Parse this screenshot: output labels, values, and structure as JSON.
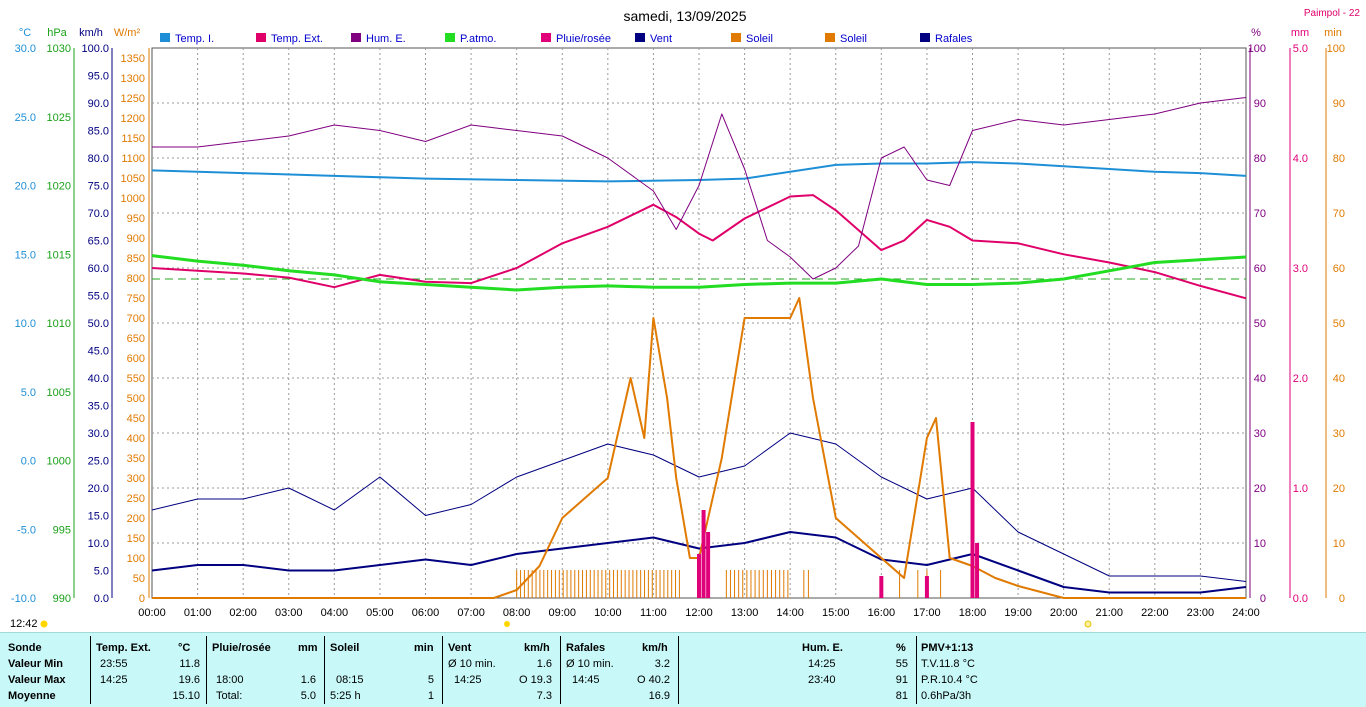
{
  "header": {
    "title": "samedi, 13/09/2025",
    "station": "Paimpol - 22"
  },
  "axes": {
    "temp": {
      "unit": "°C",
      "color": "#1e8fd6",
      "ticks": [
        "30.0",
        "25.0",
        "20.0",
        "15.0",
        "10.0",
        "5.0",
        "0.0",
        "-5.0",
        "-10.0"
      ]
    },
    "press": {
      "unit": "hPa",
      "color": "#1aa11a",
      "ticks": [
        "1030",
        "1025",
        "1020",
        "1015",
        "1010",
        "1005",
        "1000",
        "995",
        "990"
      ]
    },
    "wind": {
      "unit": "km/h",
      "color": "#000080",
      "ticks": [
        "100.0",
        "95.0",
        "90.0",
        "85.0",
        "80.0",
        "75.0",
        "70.0",
        "65.0",
        "60.0",
        "55.0",
        "50.0",
        "45.0",
        "40.0",
        "35.0",
        "30.0",
        "25.0",
        "20.0",
        "15.0",
        "10.0",
        "5.0",
        "0.0"
      ]
    },
    "solar": {
      "unit": "W/m²",
      "color": "#e07a00",
      "ticks": [
        "1350",
        "1300",
        "1250",
        "1200",
        "1150",
        "1100",
        "1050",
        "1000",
        "950",
        "900",
        "850",
        "800",
        "750",
        "700",
        "650",
        "600",
        "550",
        "500",
        "450",
        "400",
        "350",
        "300",
        "250",
        "200",
        "150",
        "100",
        "50",
        "0"
      ]
    },
    "hum": {
      "unit": "%",
      "color": "#800080",
      "ticks": [
        "100",
        "90",
        "80",
        "70",
        "60",
        "50",
        "40",
        "30",
        "20",
        "10",
        "0"
      ]
    },
    "rain": {
      "unit": "mm",
      "color": "#e0007a",
      "ticks": [
        "5.0",
        "4.0",
        "3.0",
        "2.0",
        "1.0",
        "0.0"
      ]
    },
    "sunmin": {
      "unit": "min",
      "color": "#e07a00",
      "ticks": [
        "100",
        "90",
        "80",
        "70",
        "60",
        "50",
        "40",
        "30",
        "20",
        "10",
        "0"
      ]
    }
  },
  "legend": [
    {
      "label": "Temp. I.",
      "color": "#1e8fd6"
    },
    {
      "label": "Temp. Ext.",
      "color": "#e0006a"
    },
    {
      "label": "Hum. E.",
      "color": "#800080"
    },
    {
      "label": "P.atmo.",
      "color": "#22dd22"
    },
    {
      "label": "Pluie/rosée",
      "color": "#e0007a"
    },
    {
      "label": "Vent",
      "color": "#000080"
    },
    {
      "label": "Soleil",
      "color": "#e07a00"
    },
    {
      "label": "Soleil",
      "color": "#e07a00"
    },
    {
      "label": "Rafales",
      "color": "#000080"
    }
  ],
  "chart_data": {
    "type": "line",
    "x_ticks": [
      "00:00",
      "01:00",
      "02:00",
      "03:00",
      "04:00",
      "05:00",
      "06:00",
      "07:00",
      "08:00",
      "09:00",
      "10:00",
      "11:00",
      "12:00",
      "13:00",
      "14:00",
      "15:00",
      "16:00",
      "17:00",
      "18:00",
      "19:00",
      "20:00",
      "21:00",
      "22:00",
      "23:00",
      "24:00"
    ],
    "grid": true,
    "series": [
      {
        "name": "Temp. I.",
        "axis": "temp",
        "x": [
          0,
          2,
          4,
          6,
          8,
          10,
          12,
          13,
          14,
          15,
          16,
          17,
          18,
          19,
          20,
          21,
          22,
          23,
          24
        ],
        "values": [
          21.1,
          20.9,
          20.7,
          20.5,
          20.4,
          20.3,
          20.4,
          20.5,
          21.0,
          21.5,
          21.6,
          21.6,
          21.7,
          21.6,
          21.4,
          21.2,
          21.0,
          20.9,
          20.7
        ]
      },
      {
        "name": "Temp. Ext.",
        "axis": "temp",
        "x": [
          0,
          1,
          2,
          3,
          4,
          5,
          6,
          7,
          8,
          9,
          10,
          11,
          11.5,
          12,
          12.3,
          13,
          14,
          14.5,
          15,
          16,
          16.5,
          17,
          17.5,
          18,
          19,
          20,
          21,
          22,
          23,
          24
        ],
        "values": [
          14.0,
          13.8,
          13.6,
          13.3,
          12.6,
          13.5,
          13.0,
          12.9,
          14.0,
          15.8,
          17.0,
          18.6,
          17.7,
          16.5,
          16.0,
          17.6,
          19.2,
          19.3,
          18.2,
          15.3,
          16.0,
          17.5,
          17.0,
          16.0,
          15.8,
          15.0,
          14.4,
          13.7,
          12.7,
          11.8
        ]
      },
      {
        "name": "Hum. E.",
        "axis": "hum",
        "x": [
          0,
          1,
          2,
          3,
          4,
          5,
          6,
          7,
          8,
          9,
          10,
          11,
          11.5,
          12,
          12.5,
          13,
          13.5,
          14,
          14.5,
          15,
          15.5,
          16,
          16.5,
          17,
          17.5,
          18,
          19,
          20,
          21,
          22,
          23,
          24
        ],
        "values": [
          82,
          82,
          83,
          84,
          86,
          85,
          83,
          86,
          85,
          84,
          80,
          74,
          67,
          75,
          88,
          78,
          65,
          62,
          58,
          60,
          64,
          80,
          82,
          76,
          75,
          85,
          87,
          86,
          87,
          88,
          90,
          91
        ]
      },
      {
        "name": "P.atmo.",
        "axis": "press",
        "x": [
          0,
          1,
          2,
          3,
          4,
          5,
          6,
          7,
          8,
          9,
          10,
          11,
          12,
          13,
          14,
          15,
          16,
          17,
          18,
          19,
          20,
          21,
          22,
          23,
          24
        ],
        "values": [
          1014.9,
          1014.5,
          1014.2,
          1013.8,
          1013.5,
          1013.0,
          1012.8,
          1012.6,
          1012.4,
          1012.6,
          1012.7,
          1012.6,
          1012.6,
          1012.8,
          1012.9,
          1012.9,
          1013.2,
          1012.8,
          1012.8,
          1012.9,
          1013.2,
          1013.8,
          1014.4,
          1014.6,
          1014.8
        ]
      },
      {
        "name": "Vent",
        "axis": "wind",
        "x": [
          0,
          1,
          2,
          3,
          4,
          5,
          6,
          7,
          8,
          9,
          10,
          11,
          12,
          13,
          14,
          15,
          16,
          17,
          18,
          19,
          20,
          21,
          22,
          23,
          24
        ],
        "values": [
          5,
          6,
          6,
          5,
          5,
          6,
          7,
          6,
          8,
          9,
          10,
          11,
          9,
          10,
          12,
          11,
          7,
          6,
          8,
          5,
          2,
          1,
          1,
          1,
          2
        ]
      },
      {
        "name": "Rafales",
        "axis": "wind",
        "x": [
          0,
          1,
          2,
          3,
          4,
          5,
          6,
          7,
          8,
          9,
          10,
          11,
          12,
          13,
          14,
          15,
          16,
          17,
          18,
          19,
          20,
          21,
          22,
          23,
          24
        ],
        "values": [
          16,
          18,
          18,
          20,
          16,
          22,
          15,
          17,
          22,
          25,
          28,
          26,
          22,
          24,
          30,
          28,
          22,
          18,
          20,
          12,
          8,
          4,
          4,
          4,
          3
        ]
      },
      {
        "name": "Soleil",
        "axis": "solar",
        "x": [
          0,
          7.5,
          8,
          8.5,
          9,
          9.5,
          10,
          10.5,
          10.8,
          11,
          11.3,
          11.5,
          11.8,
          12,
          12.5,
          13,
          13.5,
          14,
          14.2,
          14.5,
          15,
          15.5,
          16,
          16.5,
          17,
          17.2,
          17.5,
          18,
          18.5,
          19,
          20,
          24
        ],
        "values": [
          0,
          0,
          20,
          80,
          200,
          250,
          300,
          550,
          400,
          700,
          500,
          300,
          100,
          100,
          350,
          700,
          700,
          700,
          750,
          500,
          200,
          150,
          100,
          50,
          400,
          450,
          100,
          80,
          50,
          30,
          0,
          0
        ]
      },
      {
        "name": "Pluie/rosée",
        "axis": "rain",
        "x": [
          0,
          11.9,
          12.0,
          12.1,
          12.2,
          16.0,
          17.0,
          18.0,
          18.1,
          24
        ],
        "values": [
          0,
          0,
          0.4,
          0.8,
          0.6,
          0.2,
          0.2,
          1.6,
          0.5,
          0
        ]
      }
    ]
  },
  "markers": {
    "now_time": "12:42"
  },
  "table": {
    "row_labels": [
      "Sonde",
      "Valeur Min",
      "Valeur Max",
      "Moyenne"
    ],
    "temp": {
      "head": "Temp. Ext.",
      "unit": "°C",
      "min_t": "23:55",
      "min_v": "11.8",
      "max_t": "14:25",
      "max_v": "19.6",
      "avg": "15.10"
    },
    "rain": {
      "head": "Pluie/rosée",
      "unit": "mm",
      "max_t": "18:00",
      "max_v": "1.6",
      "tot_l": "Total:",
      "tot_v": "5.0"
    },
    "sun": {
      "head": "Soleil",
      "unit": "min",
      "max_t": "08:15",
      "max_v": "5",
      "dur": "5:25 h",
      "avg": "1"
    },
    "wind": {
      "head": "Vent",
      "unit": "km/h",
      "min_l": "Ø 10 min.",
      "min_v": "1.6",
      "max_t": "14:25",
      "max_v": "O 19.3",
      "avg": "7.3"
    },
    "gust": {
      "head": "Rafales",
      "unit": "km/h",
      "min_l": "Ø 10 min.",
      "min_v": "3.2",
      "max_t": "14:45",
      "max_v": "O 40.2",
      "avg": "16.9"
    },
    "hum": {
      "head": "Hum. E.",
      "unit": "%",
      "min_t": "14:25",
      "min_v": "55",
      "max_t": "23:40",
      "max_v": "91",
      "avg": "81"
    },
    "pmv": {
      "head": "PMV+1:13",
      "l1": "T.V.11.8 °C",
      "l2": "P.R.10.4 °C",
      "l3": "0.6hPa/3h"
    }
  }
}
